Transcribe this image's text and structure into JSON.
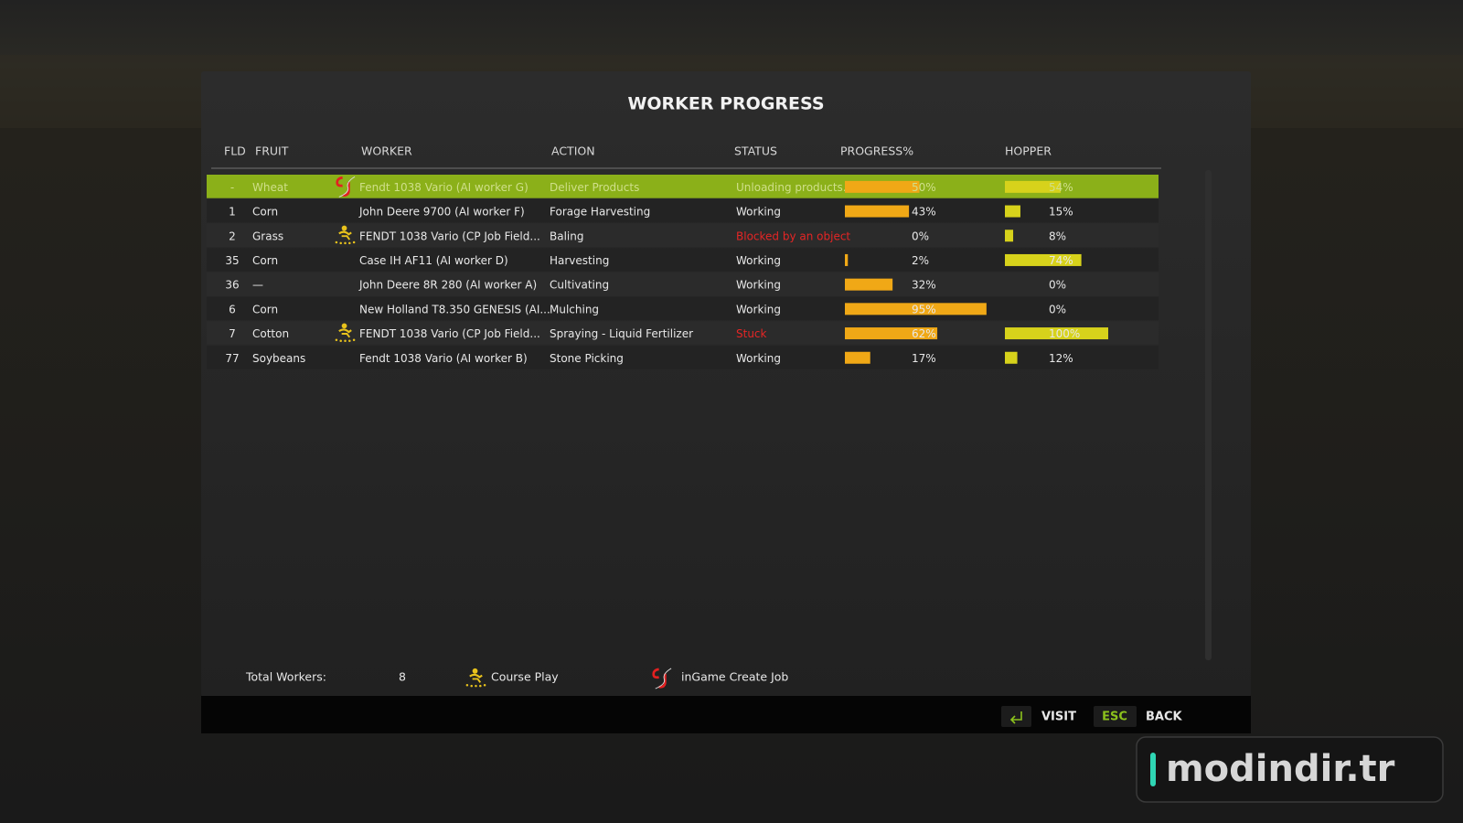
{
  "title": "WORKER PROGRESS",
  "columns": [
    "FLD",
    "FRUIT",
    "WORKER",
    "ACTION",
    "STATUS",
    "PROGRESS%",
    "HOPPER"
  ],
  "table": {
    "selected_row": 0,
    "rows": [
      {
        "fld": "-",
        "fruit": "Wheat",
        "icon": "cj",
        "worker": "Fendt 1038 Vario (AI worker G)",
        "action": "Deliver Products",
        "status": "Unloading products...",
        "progress": 50,
        "progress_label": "50%",
        "hopper": 54,
        "hopper_label": "54%"
      },
      {
        "fld": 1,
        "fruit": "Corn",
        "worker": "John Deere 9700 (AI worker F)",
        "action": "Forage Harvesting",
        "status": "Working",
        "progress": 43,
        "progress_label": "43%",
        "hopper": 15,
        "hopper_label": "15%"
      },
      {
        "fld": 2,
        "fruit": "Grass",
        "icon": "cp",
        "worker": "FENDT 1038 Vario  (CP Job Field...",
        "action": "Baling",
        "status": "Blocked by an object",
        "status_color": "#e52525",
        "progress": 0,
        "progress_label": "0%",
        "hopper": 8,
        "hopper_label": "8%"
      },
      {
        "fld": 35,
        "fruit": "Corn",
        "worker": "Case IH AF11 (AI worker D)",
        "action": "Harvesting",
        "status": "Working",
        "progress": 2,
        "progress_label": "2%",
        "hopper": 74,
        "hopper_label": "74%"
      },
      {
        "fld": 36,
        "fruit": "—",
        "worker": "John Deere 8R 280 (AI worker A)",
        "action": "Cultivating",
        "status": "Working",
        "progress": 32,
        "progress_label": "32%",
        "hopper": 0,
        "hopper_label": "0%"
      },
      {
        "fld": 6,
        "fruit": "Corn",
        "worker": "New Holland T8.350 GENESIS (AI...",
        "action": "Mulching",
        "status": "Working",
        "progress": 95,
        "progress_label": "95%",
        "hopper": 0,
        "hopper_label": "0%"
      },
      {
        "fld": 7,
        "fruit": "Cotton",
        "icon": "cp",
        "worker": "FENDT 1038 Vario  (CP Job Field...",
        "action": "Spraying - Liquid Fertilizer",
        "status": "Stuck",
        "status_color": "#e52525",
        "progress": 62,
        "progress_label": "62%",
        "hopper": 100,
        "hopper_label": "100%"
      },
      {
        "fld": 77,
        "fruit": "Soybeans",
        "worker": "Fendt 1038 Vario (AI worker B)",
        "action": "Stone Picking",
        "status": "Working",
        "progress": 17,
        "progress_label": "17%",
        "hopper": 12,
        "hopper_label": "12%"
      }
    ]
  },
  "footer": {
    "total_label": "Total Workers:",
    "total": 8,
    "legend": [
      {
        "icon": "cp",
        "label": "Course Play"
      },
      {
        "icon": "cj",
        "label": "inGame Create Job"
      }
    ]
  },
  "buttons": {
    "visit": "VISIT",
    "esc_key": "ESC",
    "back": "BACK"
  },
  "watermark": "modindir.tr"
}
